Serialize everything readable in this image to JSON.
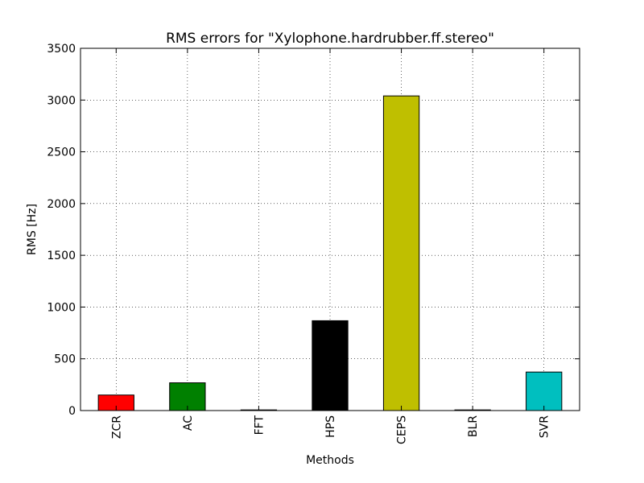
{
  "chart_data": {
    "type": "bar",
    "title": "RMS errors for \"Xylophone.hardrubber.ff.stereo\"",
    "xlabel": "Methods",
    "ylabel": "RMS [Hz]",
    "categories": [
      "ZCR",
      "AC",
      "FFT",
      "HPS",
      "CEPS",
      "BLR",
      "SVR"
    ],
    "values": [
      150,
      268,
      5,
      868,
      3040,
      2,
      372
    ],
    "colors": [
      "#ff0000",
      "#008000",
      "#000080",
      "#000000",
      "#bfbf00",
      "#bf00bf",
      "#00bfbf"
    ],
    "ylim": [
      0,
      3500
    ],
    "yticks": [
      0,
      500,
      1000,
      1500,
      2000,
      2500,
      3000,
      3500
    ],
    "ytick_labels": [
      "0",
      "500",
      "1000",
      "1500",
      "2000",
      "2500",
      "3000",
      "3500"
    ],
    "grid": true,
    "xtick_rotation": "vertical"
  }
}
